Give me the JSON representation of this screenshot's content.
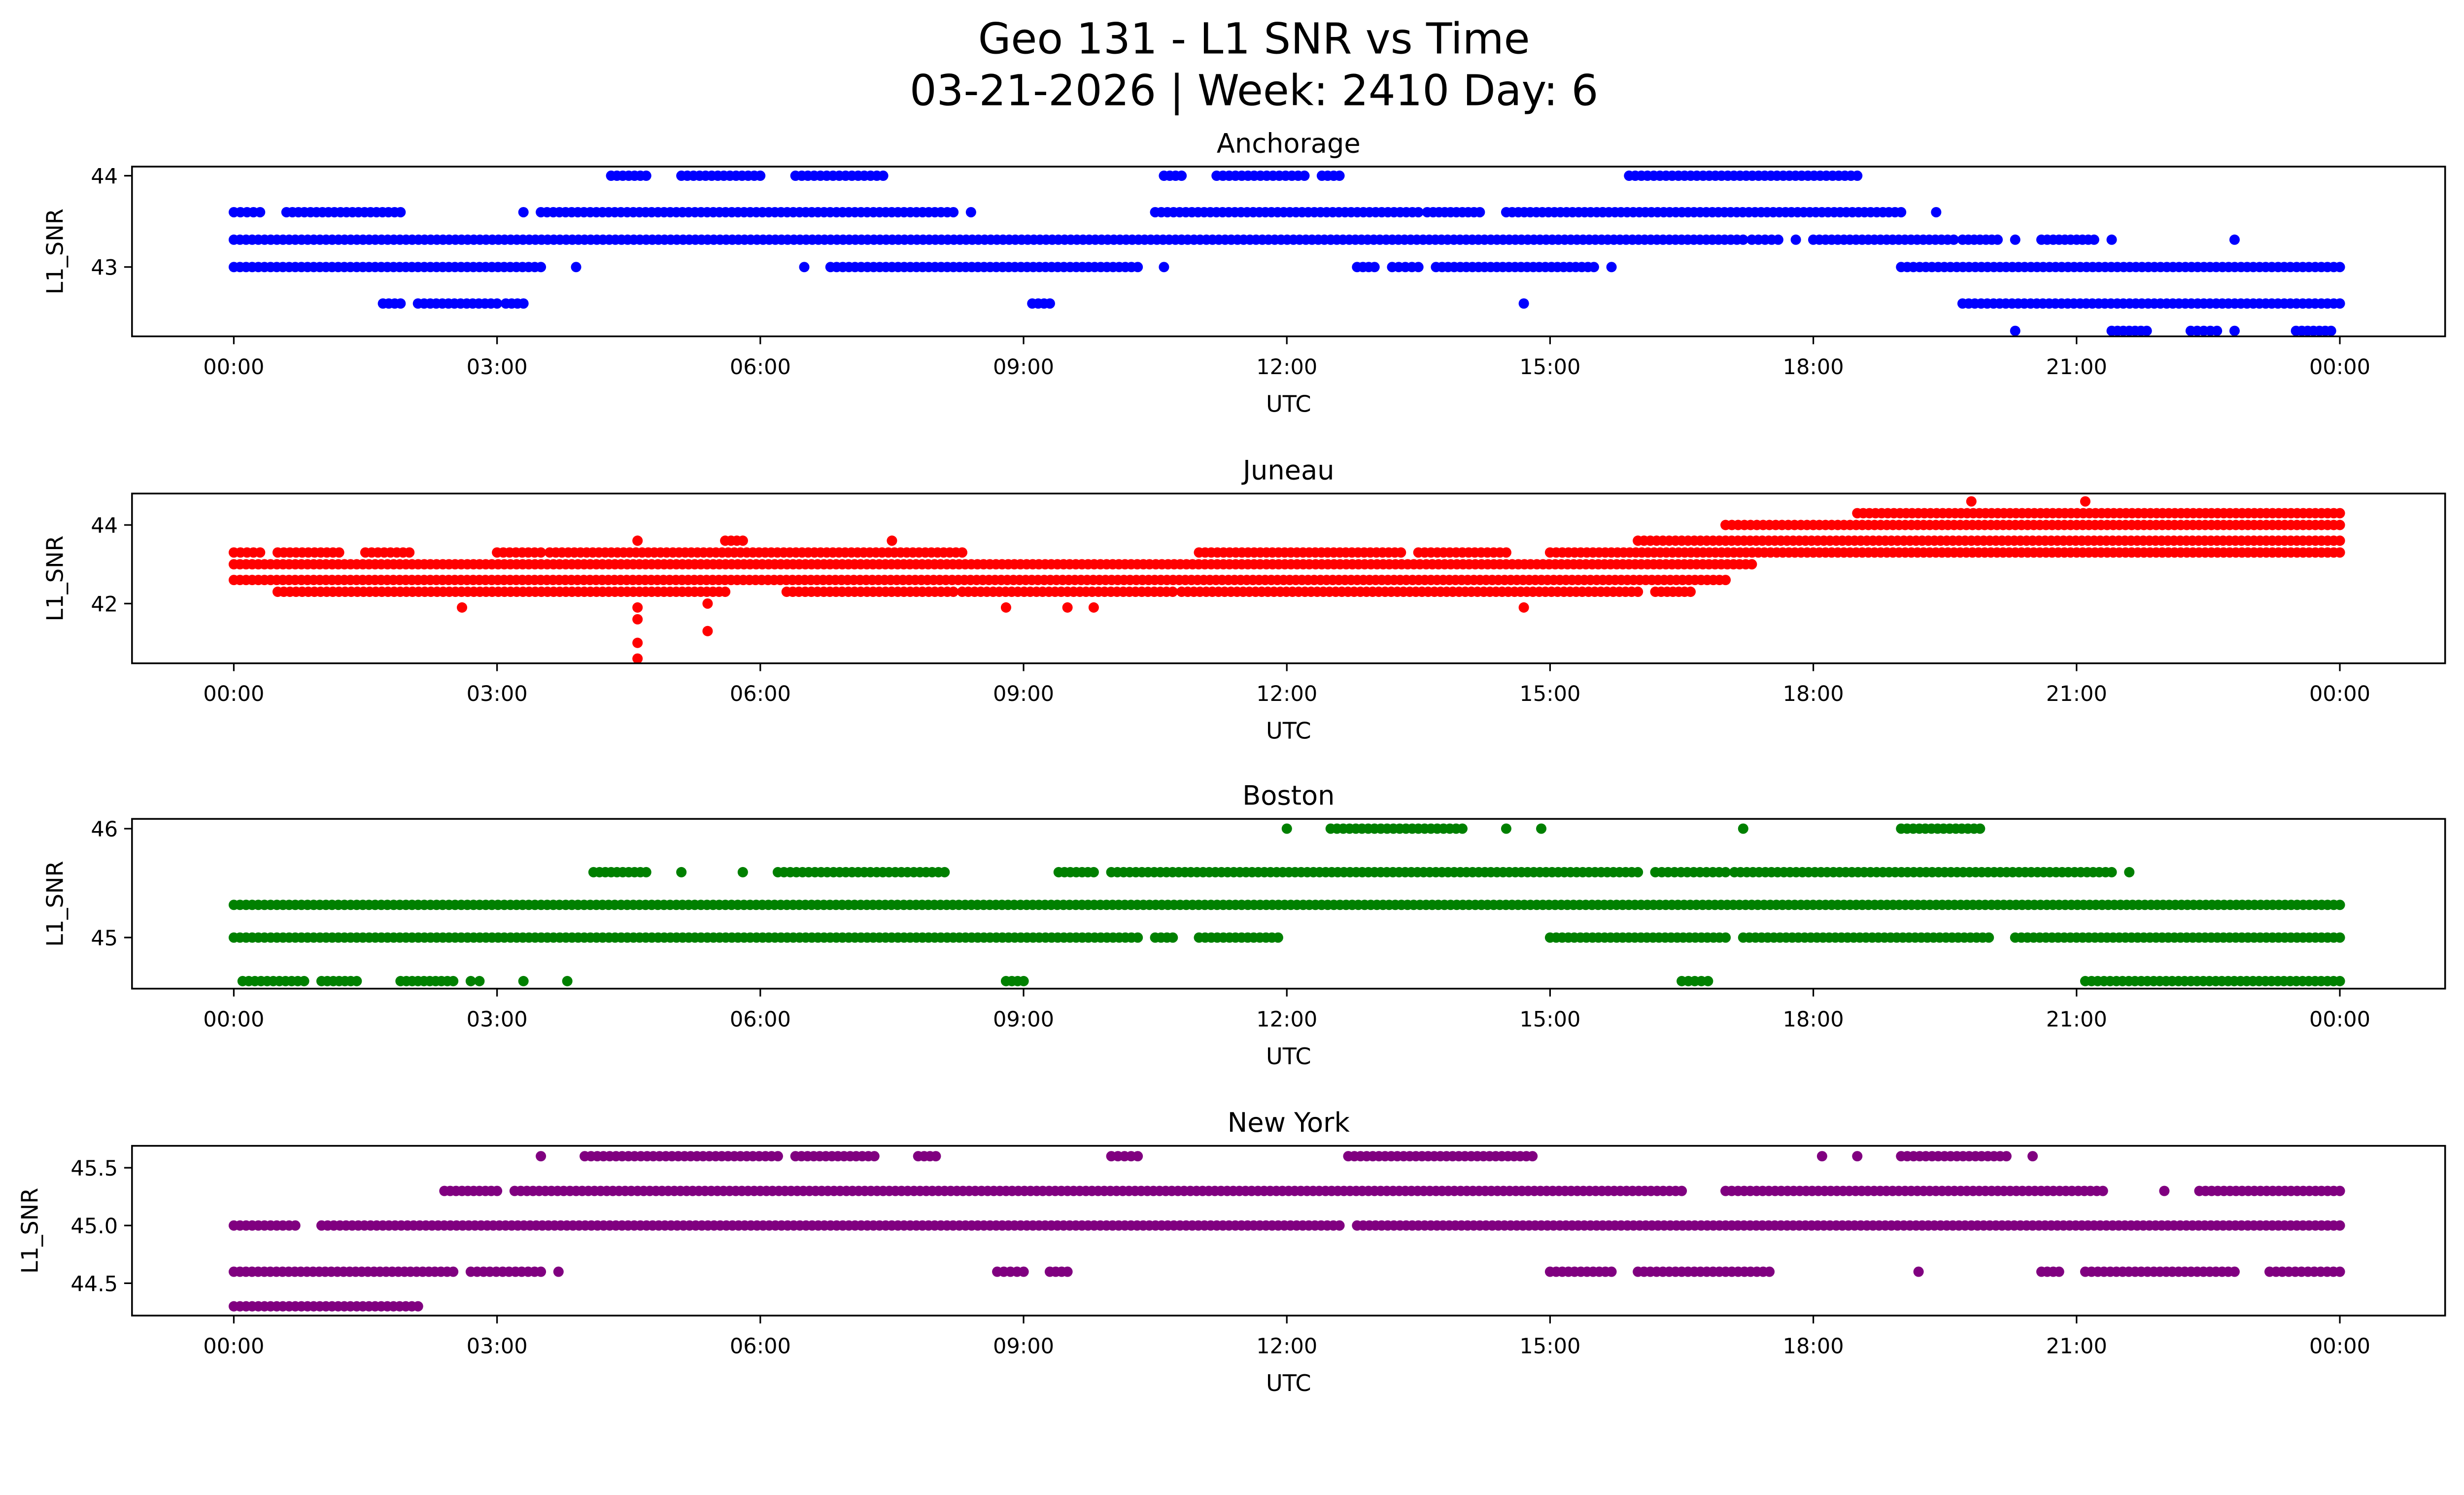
{
  "chart_data": {
    "type": "scatter",
    "title": "Geo 131 - L1 SNR vs Time",
    "subtitle": "03-21-2026 | Week: 2410 Day: 6",
    "xlabel": "UTC",
    "ylabel": "L1_SNR",
    "x_tick_labels": [
      "00:00",
      "03:00",
      "06:00",
      "09:00",
      "12:00",
      "15:00",
      "18:00",
      "21:00",
      "00:00"
    ],
    "x_tick_hours": [
      0,
      3,
      6,
      9,
      12,
      15,
      18,
      21,
      24
    ],
    "xlim_hours": [
      -1.16,
      25.2
    ],
    "grid": false,
    "panels": [
      {
        "title": "Anchorage",
        "color": "#0000ff",
        "ylim": [
          42.24,
          44.1
        ],
        "y_ticks": [
          43,
          44
        ],
        "y_tick_labels": [
          "43",
          "44"
        ],
        "series": [
          {
            "y": 44.0,
            "runs": [
              [
                4.3,
                4.7
              ],
              [
                5.1,
                6.0
              ],
              [
                6.4,
                7.4
              ],
              [
                10.6,
                10.8
              ],
              [
                11.2,
                12.2
              ],
              [
                12.4,
                12.6
              ],
              [
                15.9,
                18.5
              ]
            ]
          },
          {
            "y": 43.6,
            "runs": [
              [
                0,
                0.3
              ],
              [
                0.6,
                1.9
              ],
              [
                3.3,
                3.3
              ],
              [
                3.5,
                8.2
              ],
              [
                8.4,
                8.4
              ],
              [
                10.5,
                13.5
              ],
              [
                13.6,
                14.2
              ],
              [
                14.5,
                15.6
              ],
              [
                15.6,
                19.0
              ],
              [
                19.4,
                19.4
              ]
            ]
          },
          {
            "y": 43.3,
            "runs": [
              [
                0,
                10.8
              ],
              [
                10.8,
                12.5
              ],
              [
                12.5,
                17.2
              ],
              [
                17.3,
                17.6
              ],
              [
                17.8,
                17.8
              ],
              [
                18.0,
                19.6
              ],
              [
                19.7,
                20.1
              ],
              [
                20.3,
                20.3
              ],
              [
                20.6,
                21.2
              ],
              [
                21.4,
                21.4
              ],
              [
                22.8,
                22.8
              ]
            ]
          },
          {
            "y": 43.0,
            "runs": [
              [
                0,
                3.5
              ],
              [
                3.9,
                3.9
              ],
              [
                6.5,
                6.5
              ],
              [
                6.8,
                10.3
              ],
              [
                10.6,
                10.6
              ],
              [
                12.8,
                13.0
              ],
              [
                13.2,
                13.5
              ],
              [
                13.7,
                15.5
              ],
              [
                15.7,
                15.7
              ],
              [
                19.0,
                24.0
              ]
            ]
          },
          {
            "y": 42.6,
            "runs": [
              [
                1.7,
                1.9
              ],
              [
                2.1,
                3.0
              ],
              [
                3.1,
                3.3
              ],
              [
                9.1,
                9.3
              ],
              [
                14.7,
                14.7
              ],
              [
                19.7,
                24.0
              ]
            ]
          },
          {
            "y": 42.3,
            "runs": [
              [
                20.3,
                20.3
              ],
              [
                21.4,
                21.8
              ],
              [
                22.3,
                22.6
              ],
              [
                22.8,
                22.8
              ],
              [
                23.5,
                23.9
              ]
            ]
          }
        ]
      },
      {
        "title": "Juneau",
        "color": "#ff0000",
        "ylim": [
          40.48,
          44.8
        ],
        "y_ticks": [
          42,
          44
        ],
        "y_tick_labels": [
          "42",
          "44"
        ],
        "series": [
          {
            "y": 44.6,
            "runs": [
              [
                19.8,
                19.8
              ],
              [
                21.1,
                21.1
              ]
            ]
          },
          {
            "y": 44.3,
            "runs": [
              [
                18.5,
                24.0
              ]
            ]
          },
          {
            "y": 44.0,
            "runs": [
              [
                17.0,
                18.0
              ],
              [
                18.0,
                24.0
              ]
            ]
          },
          {
            "y": 43.6,
            "runs": [
              [
                4.6,
                4.6
              ],
              [
                5.6,
                5.8
              ],
              [
                7.5,
                7.5
              ],
              [
                16.0,
                17.0
              ],
              [
                17.0,
                24.0
              ]
            ]
          },
          {
            "y": 43.3,
            "runs": [
              [
                0,
                0.3
              ],
              [
                0.5,
                1.2
              ],
              [
                1.5,
                2.0
              ],
              [
                3.0,
                3.5
              ],
              [
                3.6,
                8.3
              ],
              [
                11.0,
                13.3
              ],
              [
                13.5,
                14.5
              ],
              [
                15.0,
                24.0
              ]
            ]
          },
          {
            "y": 43.0,
            "runs": [
              [
                0,
                17.3
              ]
            ]
          },
          {
            "y": 42.6,
            "runs": [
              [
                0,
                17.0
              ]
            ]
          },
          {
            "y": 42.3,
            "runs": [
              [
                0.5,
                5.6
              ],
              [
                6.3,
                8.2
              ],
              [
                8.3,
                10.7
              ],
              [
                10.8,
                16.0
              ],
              [
                16.2,
                16.6
              ]
            ]
          },
          {
            "y": 42.0,
            "runs": [
              [
                5.4,
                5.4
              ]
            ]
          },
          {
            "y": 41.9,
            "runs": [
              [
                2.6,
                2.6
              ],
              [
                4.6,
                4.6
              ],
              [
                8.8,
                8.8
              ],
              [
                9.5,
                9.5
              ],
              [
                9.8,
                9.8
              ],
              [
                14.7,
                14.7
              ]
            ]
          },
          {
            "y": 41.6,
            "runs": [
              [
                4.6,
                4.6
              ]
            ]
          },
          {
            "y": 41.3,
            "runs": [
              [
                5.4,
                5.4
              ]
            ]
          },
          {
            "y": 41.0,
            "runs": [
              [
                4.6,
                4.6
              ]
            ]
          },
          {
            "y": 40.6,
            "runs": [
              [
                4.6,
                4.6
              ]
            ]
          }
        ]
      },
      {
        "title": "Boston",
        "color": "#008000",
        "ylim": [
          44.53,
          46.09
        ],
        "y_ticks": [
          45,
          46
        ],
        "y_tick_labels": [
          "45",
          "46"
        ],
        "series": [
          {
            "y": 46.0,
            "runs": [
              [
                12.0,
                12.0
              ],
              [
                12.5,
                14.0
              ],
              [
                14.5,
                14.5
              ],
              [
                14.9,
                14.9
              ],
              [
                17.2,
                17.2
              ],
              [
                19.0,
                19.9
              ]
            ]
          },
          {
            "y": 45.6,
            "runs": [
              [
                4.1,
                4.7
              ],
              [
                5.1,
                5.1
              ],
              [
                5.8,
                5.8
              ],
              [
                6.2,
                8.1
              ],
              [
                9.4,
                9.8
              ],
              [
                10.0,
                16.0
              ],
              [
                16.2,
                17.0
              ],
              [
                17.1,
                21.4
              ],
              [
                21.6,
                21.6
              ]
            ]
          },
          {
            "y": 45.3,
            "runs": [
              [
                0,
                21.5
              ],
              [
                21.5,
                24.0
              ]
            ]
          },
          {
            "y": 45.0,
            "runs": [
              [
                0,
                10.3
              ],
              [
                10.5,
                10.7
              ],
              [
                11.0,
                11.9
              ],
              [
                15.0,
                17.0
              ],
              [
                17.2,
                20.0
              ],
              [
                20.3,
                24.0
              ]
            ]
          },
          {
            "y": 44.6,
            "runs": [
              [
                0.1,
                0.8
              ],
              [
                1.0,
                1.4
              ],
              [
                1.9,
                2.5
              ],
              [
                2.7,
                2.8
              ],
              [
                3.3,
                3.3
              ],
              [
                3.8,
                3.8
              ],
              [
                8.8,
                9.0
              ],
              [
                16.5,
                16.8
              ],
              [
                21.1,
                24.0
              ]
            ]
          }
        ]
      },
      {
        "title": "New York",
        "color": "#800080",
        "ylim": [
          44.22,
          45.69
        ],
        "y_ticks": [
          44.5,
          45.0,
          45.5
        ],
        "y_tick_labels": [
          "44.5",
          "45.0",
          "45.5"
        ],
        "series": [
          {
            "y": 45.6,
            "runs": [
              [
                3.5,
                3.5
              ],
              [
                4.0,
                6.2
              ],
              [
                6.4,
                7.3
              ],
              [
                7.8,
                8.0
              ],
              [
                10.0,
                10.3
              ],
              [
                12.7,
                14.8
              ],
              [
                18.1,
                18.1
              ],
              [
                18.5,
                18.5
              ],
              [
                19.0,
                20.2
              ],
              [
                20.5,
                20.5
              ]
            ]
          },
          {
            "y": 45.3,
            "runs": [
              [
                2.4,
                3.0
              ],
              [
                3.2,
                16.5
              ],
              [
                17.0,
                21.3
              ],
              [
                22.0,
                22.0
              ],
              [
                22.4,
                24.0
              ]
            ]
          },
          {
            "y": 45.0,
            "runs": [
              [
                0,
                0.7
              ],
              [
                1.0,
                12.6
              ],
              [
                12.8,
                24.0
              ]
            ]
          },
          {
            "y": 44.6,
            "runs": [
              [
                0,
                2.5
              ],
              [
                2.7,
                3.5
              ],
              [
                3.7,
                3.7
              ],
              [
                8.7,
                9.0
              ],
              [
                9.3,
                9.5
              ],
              [
                15.0,
                15.7
              ],
              [
                16.0,
                17.5
              ],
              [
                19.2,
                19.2
              ],
              [
                20.6,
                20.8
              ],
              [
                21.1,
                22.8
              ],
              [
                23.2,
                24.0
              ]
            ]
          },
          {
            "y": 44.3,
            "runs": [
              [
                0,
                2.1
              ]
            ]
          }
        ]
      }
    ]
  }
}
